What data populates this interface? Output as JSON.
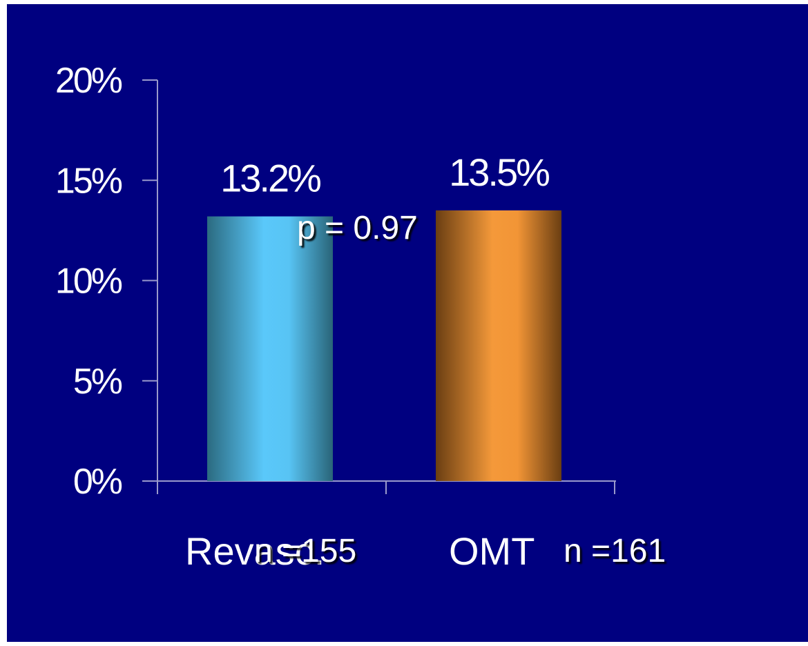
{
  "colors": {
    "background": "#000080",
    "revasc_bar": "#5ac8fa",
    "omt_bar": "#f4993a"
  },
  "chart_data": {
    "type": "bar",
    "categories": [
      "Revasc.",
      "OMT"
    ],
    "values": [
      13.2,
      13.5
    ],
    "data_labels": [
      "13.2%",
      "13.5%"
    ],
    "ylim": [
      0,
      20
    ],
    "yticks": [
      0,
      5,
      10,
      15,
      20
    ],
    "ytick_labels": [
      "0%",
      "5%",
      "10%",
      "15%",
      "20%"
    ],
    "title": "",
    "xlabel": "",
    "ylabel": "",
    "grid": false,
    "annotations": {
      "p_value": "p = 0.97",
      "n_labels": [
        "n =155",
        "n =161"
      ]
    }
  }
}
